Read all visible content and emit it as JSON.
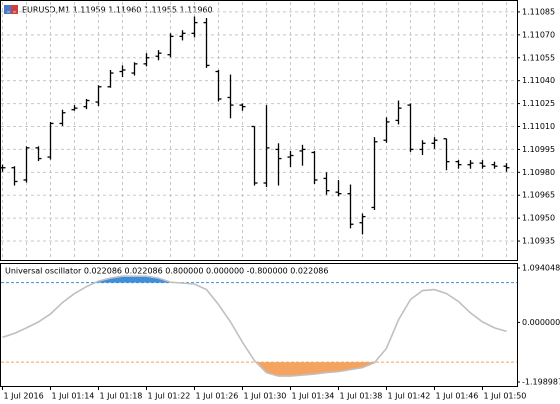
{
  "chart_data": [
    {
      "type": "ohlc",
      "title": "EURUSD,M1 1.11959 1.11960 1.11955 1.11960",
      "categories": [
        "1 Jul 2016",
        null,
        null,
        null,
        "1 Jul 01:14",
        null,
        null,
        null,
        "1 Jul 01:18",
        null,
        null,
        null,
        "1 Jul 01:22",
        null,
        null,
        null,
        "1 Jul 01:26",
        null,
        null,
        null,
        "1 Jul 01:30",
        null,
        null,
        null,
        "1 Jul 01:34",
        null,
        null,
        null,
        "1 Jul 01:38",
        null,
        null,
        null,
        "1 Jul 01:42",
        null,
        null,
        null,
        "1 Jul 01:46",
        null,
        null,
        null,
        "1 Jul 01:50",
        null,
        null
      ],
      "open": [
        1.10983,
        1.10983,
        1.10975,
        1.10996,
        1.1099,
        1.11012,
        1.11021,
        1.11023,
        1.11026,
        1.11036,
        1.11046,
        1.11045,
        1.11051,
        1.11056,
        1.11057,
        1.11069,
        1.11071,
        1.11078,
        1.11046,
        1.11029,
        1.11024,
        1.1101,
        1.10973,
        1.10995,
        1.1099,
        1.10994,
        1.10993,
        1.10976,
        1.10967,
        1.10966,
        1.10947,
        1.10957,
        1.11001,
        1.11014,
        1.11024,
        1.10995,
        1.10999,
        1.11002,
        1.10987,
        1.10985,
        1.10986,
        1.10985,
        1.10984
      ],
      "high": [
        1.10985,
        1.10984,
        1.10997,
        1.10997,
        1.11013,
        1.11021,
        1.11024,
        1.11028,
        1.11037,
        1.11047,
        1.1105,
        1.11052,
        1.11058,
        1.1106,
        1.11071,
        1.11073,
        1.11082,
        1.11081,
        1.11047,
        1.11044,
        1.11025,
        1.1101,
        1.11024,
        1.10999,
        1.10994,
        1.10998,
        1.10994,
        1.1098,
        1.10975,
        1.10972,
        1.10953,
        1.11003,
        1.11016,
        1.11027,
        1.11025,
        1.11001,
        1.11003,
        1.11002,
        1.10988,
        1.10988,
        1.10988,
        1.10987,
        1.10986
      ],
      "low": [
        1.10981,
        1.10972,
        1.10974,
        1.10988,
        1.10989,
        1.11011,
        1.11021,
        1.11022,
        1.11024,
        1.11036,
        1.11043,
        1.11044,
        1.1105,
        1.11054,
        1.11056,
        1.11067,
        1.11069,
        1.11049,
        1.11027,
        1.11016,
        1.11021,
        1.10972,
        1.10971,
        1.10972,
        1.10984,
        1.10985,
        1.10973,
        1.10966,
        1.10965,
        1.10944,
        1.1094,
        1.10956,
        1.11,
        1.11012,
        1.10994,
        1.10992,
        1.10996,
        1.10982,
        1.10983,
        1.10983,
        1.10983,
        1.10983,
        1.10981
      ],
      "close": [
        1.10983,
        1.10974,
        1.10996,
        1.10989,
        1.11012,
        1.11019,
        1.11022,
        1.11027,
        1.11036,
        1.11045,
        1.11047,
        1.11051,
        1.11055,
        1.11058,
        1.11069,
        1.11071,
        1.11078,
        1.1105,
        1.11028,
        1.11024,
        1.11023,
        1.10973,
        1.10996,
        1.10989,
        1.10991,
        1.10995,
        1.10975,
        1.10968,
        1.10966,
        1.10946,
        1.10951,
        1.11,
        1.11013,
        1.11022,
        1.10995,
        1.10999,
        1.11001,
        1.10987,
        1.10985,
        1.10986,
        1.10984,
        1.10984,
        1.10983
      ],
      "color": "#000000",
      "ylim": [
        1.109226,
        1.110915
      ],
      "yticks": [
        1.11085,
        {
          "value": 1.1107,
          "label": "1.11070"
        },
        1.11055,
        {
          "value": 1.1104,
          "label": "1.11040"
        },
        1.11025,
        {
          "value": 1.1101,
          "label": "1.11010"
        },
        1.10995,
        {
          "value": 1.1098,
          "label": "1.10980"
        },
        1.10965,
        {
          "value": 1.1095,
          "label": "1.10950"
        },
        1.10935
      ],
      "grid": true
    },
    {
      "type": "oscillator",
      "title": "Universal oscillator 0.022086 0.022086 0.800000 0.000000 -0.800000 0.022086",
      "values": [
        -0.3,
        -0.22,
        -0.11,
        0.01,
        0.17,
        0.4,
        0.58,
        0.72,
        0.83,
        0.89,
        0.93,
        0.93,
        0.93,
        0.89,
        0.81,
        0.79,
        0.77,
        0.66,
        0.36,
        0.01,
        -0.4,
        -0.77,
        -1.01,
        -1.08,
        -1.08,
        -1.06,
        -1.04,
        -1.01,
        -0.99,
        -0.95,
        -0.91,
        -0.81,
        -0.52,
        0.05,
        0.46,
        0.64,
        0.66,
        0.58,
        0.42,
        0.19,
        0.01,
        -0.11,
        -0.18
      ],
      "color": "#c0c0c0",
      "levels": [
        0.8,
        -0.8
      ],
      "level_colors": [
        "#3d8fdc",
        "#f4a460"
      ],
      "ylim": [
        -1.198987,
        1.094048
      ],
      "yticks": [
        1.094048,
        {
          "value": 0,
          "label": "0.000000"
        },
        -1.198987
      ]
    }
  ]
}
